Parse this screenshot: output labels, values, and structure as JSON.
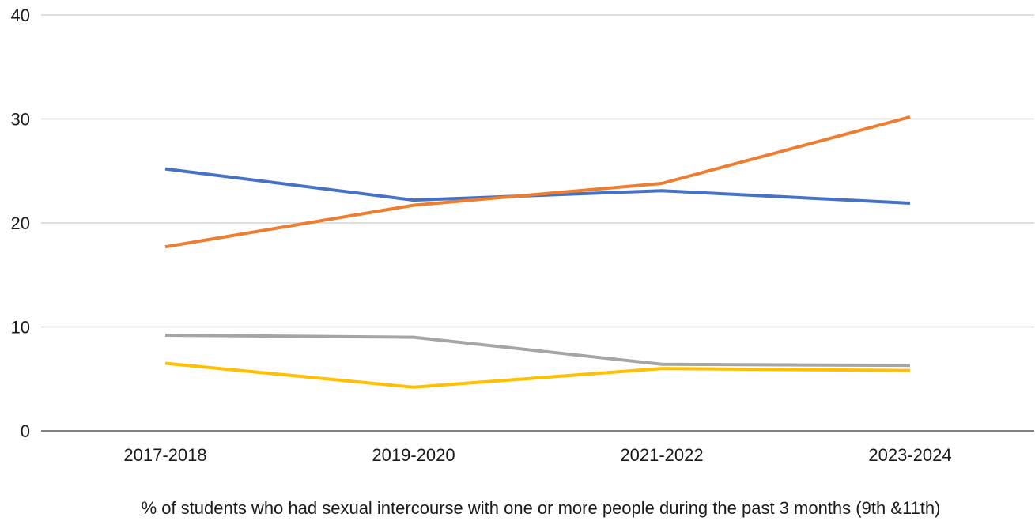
{
  "chart_data": {
    "type": "line",
    "title": "",
    "xlabel": "% of students who had sexual intercourse with one or more people during the past 3 months (9th &11th)",
    "ylabel": "",
    "categories": [
      "2017-2018",
      "2019-2020",
      "2021-2022",
      "2023-2024"
    ],
    "ylim": [
      0,
      40
    ],
    "yticks": [
      0,
      10,
      20,
      30,
      40
    ],
    "grid": true,
    "legend": "none",
    "series": [
      {
        "color": "#4472C4",
        "values": [
          25.2,
          22.2,
          23.1,
          21.9
        ]
      },
      {
        "color": "#ED7D31",
        "values": [
          17.7,
          21.7,
          23.8,
          30.2
        ]
      },
      {
        "color": "#A5A5A5",
        "values": [
          9.2,
          9.0,
          6.4,
          6.3
        ]
      },
      {
        "color": "#FFC000",
        "values": [
          6.5,
          4.2,
          6.0,
          5.8
        ]
      }
    ]
  }
}
